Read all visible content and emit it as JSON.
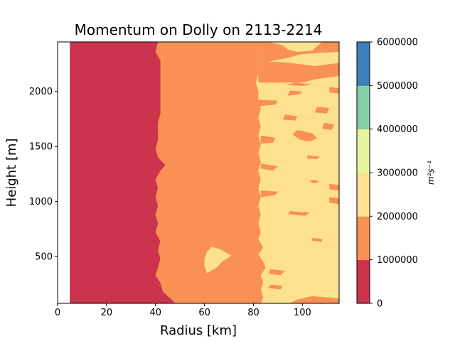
{
  "chart_data": {
    "type": "heatmap",
    "subtype": "filled-contour",
    "title": "Momentum on Dolly on 2113-2214",
    "xlabel": "Radius [km]",
    "ylabel": "Height [m]",
    "colorbar_label": "m²s⁻¹",
    "xlim": [
      0,
      115
    ],
    "ylim": [
      75,
      2450
    ],
    "x_ticks": [
      0,
      20,
      40,
      60,
      80,
      100
    ],
    "y_ticks": [
      500,
      1000,
      1500,
      2000
    ],
    "data_x_start": 5,
    "colorbar": {
      "levels": [
        0,
        1000000,
        2000000,
        3000000,
        4000000,
        5000000,
        6000000
      ],
      "tick_labels": [
        "0",
        "1000000",
        "2000000",
        "3000000",
        "4000000",
        "5000000",
        "6000000"
      ],
      "colors": [
        "#cc334c",
        "#f99154",
        "#fde18e",
        "#e7f59c",
        "#87cea6",
        "#3b80b9"
      ]
    },
    "boundaries": {
      "low_mid": [
        [
          48,
          75
        ],
        [
          46,
          120
        ],
        [
          43,
          180
        ],
        [
          42,
          260
        ],
        [
          40,
          330
        ],
        [
          41,
          400
        ],
        [
          42,
          480
        ],
        [
          41,
          560
        ],
        [
          42,
          640
        ],
        [
          40,
          720
        ],
        [
          41,
          800
        ],
        [
          40,
          880
        ],
        [
          41,
          960
        ],
        [
          40,
          1040
        ],
        [
          41,
          1120
        ],
        [
          40,
          1200
        ],
        [
          42,
          1280
        ],
        [
          44,
          1330
        ],
        [
          41,
          1400
        ],
        [
          40,
          1480
        ],
        [
          41,
          1560
        ],
        [
          41,
          1640
        ],
        [
          41,
          1720
        ],
        [
          42,
          1800
        ],
        [
          42,
          1880
        ],
        [
          42,
          1960
        ],
        [
          42,
          2040
        ],
        [
          42,
          2120
        ],
        [
          42,
          2200
        ],
        [
          42,
          2280
        ],
        [
          40,
          2360
        ],
        [
          41,
          2450
        ]
      ],
      "mid_high": [
        [
          83,
          75
        ],
        [
          84,
          130
        ],
        [
          83,
          200
        ],
        [
          84,
          260
        ],
        [
          83,
          330
        ],
        [
          85,
          400
        ],
        [
          84,
          450
        ],
        [
          82,
          520
        ],
        [
          84,
          580
        ],
        [
          82,
          660
        ],
        [
          83,
          720
        ],
        [
          82,
          800
        ],
        [
          83,
          880
        ],
        [
          82,
          960
        ],
        [
          83,
          1040
        ],
        [
          82,
          1120
        ],
        [
          83,
          1200
        ],
        [
          82,
          1280
        ],
        [
          83,
          1360
        ],
        [
          82,
          1440
        ],
        [
          83,
          1520
        ],
        [
          82,
          1600
        ],
        [
          83,
          1680
        ],
        [
          82,
          1760
        ],
        [
          83,
          1840
        ],
        [
          82,
          1920
        ],
        [
          82,
          2000
        ],
        [
          81,
          2080
        ],
        [
          82,
          2160
        ],
        [
          82,
          2240
        ],
        [
          82,
          2320
        ],
        [
          82,
          2450
        ]
      ]
    },
    "islands": [
      {
        "level": "2000000-3000000",
        "points": [
          [
            61,
            350
          ],
          [
            65,
            400
          ],
          [
            67,
            450
          ],
          [
            71,
            510
          ],
          [
            67,
            560
          ],
          [
            63,
            590
          ],
          [
            61,
            545
          ],
          [
            60,
            480
          ],
          [
            60,
            410
          ]
        ]
      },
      {
        "level": "1000000-2000000",
        "points": [
          [
            95,
            75
          ],
          [
            115,
            75
          ],
          [
            115,
            120
          ],
          [
            104,
            140
          ],
          [
            98,
            110
          ]
        ]
      },
      {
        "level": "1000000-2000000",
        "points": [
          [
            86,
            215
          ],
          [
            91,
            200
          ],
          [
            92,
            235
          ],
          [
            87,
            245
          ]
        ]
      },
      {
        "level": "1000000-2000000",
        "points": [
          [
            86,
            345
          ],
          [
            91,
            330
          ],
          [
            93,
            370
          ],
          [
            87,
            385
          ]
        ]
      },
      {
        "level": "1000000-2000000",
        "points": [
          [
            104,
            645
          ],
          [
            108,
            635
          ],
          [
            108,
            660
          ],
          [
            104,
            668
          ]
        ]
      },
      {
        "level": "1000000-2000000",
        "points": [
          [
            94,
            885
          ],
          [
            101,
            870
          ],
          [
            103,
            900
          ],
          [
            95,
            912
          ]
        ]
      },
      {
        "level": "1000000-2000000",
        "points": [
          [
            111,
            990
          ],
          [
            115,
            975
          ],
          [
            115,
            1030
          ],
          [
            111,
            1040
          ]
        ]
      },
      {
        "level": "1000000-2000000",
        "points": [
          [
            83,
            1040
          ],
          [
            89,
            1060
          ],
          [
            90,
            1090
          ],
          [
            83,
            1100
          ]
        ]
      },
      {
        "level": "1000000-2000000",
        "points": [
          [
            111,
            1110
          ],
          [
            115,
            1100
          ],
          [
            115,
            1150
          ],
          [
            111,
            1160
          ]
        ]
      },
      {
        "level": "1000000-2000000",
        "points": [
          [
            103,
            1180
          ],
          [
            105,
            1165
          ],
          [
            107,
            1185
          ],
          [
            104,
            1200
          ]
        ]
      },
      {
        "level": "1000000-2000000",
        "points": [
          [
            83,
            1300
          ],
          [
            88,
            1280
          ],
          [
            90,
            1320
          ],
          [
            83,
            1345
          ]
        ]
      },
      {
        "level": "1000000-2000000",
        "points": [
          [
            102,
            1390
          ],
          [
            106,
            1385
          ],
          [
            107,
            1410
          ],
          [
            102,
            1420
          ]
        ]
      },
      {
        "level": "1000000-2000000",
        "points": [
          [
            83,
            1525
          ],
          [
            88,
            1535
          ],
          [
            89,
            1580
          ],
          [
            83,
            1600
          ]
        ]
      },
      {
        "level": "1000000-2000000",
        "points": [
          [
            99,
            1560
          ],
          [
            103,
            1545
          ],
          [
            106,
            1575
          ],
          [
            104,
            1620
          ],
          [
            98,
            1650
          ],
          [
            96,
            1610
          ]
        ]
      },
      {
        "level": "1000000-2000000",
        "points": [
          [
            108,
            1660
          ],
          [
            112,
            1650
          ],
          [
            113,
            1700
          ],
          [
            109,
            1715
          ]
        ]
      },
      {
        "level": "1000000-2000000",
        "points": [
          [
            92,
            1745
          ],
          [
            97,
            1735
          ],
          [
            98,
            1775
          ],
          [
            93,
            1790
          ]
        ]
      },
      {
        "level": "1000000-2000000",
        "points": [
          [
            105,
            1810
          ],
          [
            110,
            1800
          ],
          [
            111,
            1850
          ],
          [
            106,
            1860
          ]
        ]
      },
      {
        "level": "1000000-2000000",
        "points": [
          [
            82,
            1865
          ],
          [
            89,
            1880
          ],
          [
            90,
            1915
          ],
          [
            82,
            1925
          ]
        ]
      },
      {
        "level": "1000000-2000000",
        "points": [
          [
            94,
            1960
          ],
          [
            99,
            1975
          ],
          [
            100,
            2000
          ],
          [
            95,
            2008
          ]
        ]
      },
      {
        "level": "1000000-2000000",
        "points": [
          [
            111,
            1990
          ],
          [
            115,
            1980
          ],
          [
            115,
            2030
          ],
          [
            111,
            2040
          ]
        ]
      },
      {
        "level": "1000000-2000000",
        "points": [
          [
            93,
            2060
          ],
          [
            100,
            2050
          ],
          [
            104,
            2065
          ],
          [
            97,
            2080
          ]
        ]
      },
      {
        "level": "1000000-2000000",
        "points": [
          [
            82,
            2080
          ],
          [
            100,
            2080
          ],
          [
            105,
            2110
          ],
          [
            115,
            2140
          ],
          [
            115,
            2260
          ],
          [
            105,
            2230
          ],
          [
            95,
            2260
          ],
          [
            88,
            2270
          ],
          [
            84,
            2260
          ],
          [
            82,
            2240
          ]
        ]
      },
      {
        "level": "1000000-2000000",
        "points": [
          [
            82,
            2240
          ],
          [
            88,
            2280
          ],
          [
            93,
            2300
          ],
          [
            100,
            2340
          ],
          [
            115,
            2360
          ],
          [
            115,
            2450
          ],
          [
            108,
            2450
          ],
          [
            104,
            2370
          ],
          [
            98,
            2360
          ],
          [
            94,
            2380
          ],
          [
            92,
            2420
          ],
          [
            86,
            2450
          ],
          [
            82,
            2450
          ]
        ]
      }
    ]
  }
}
